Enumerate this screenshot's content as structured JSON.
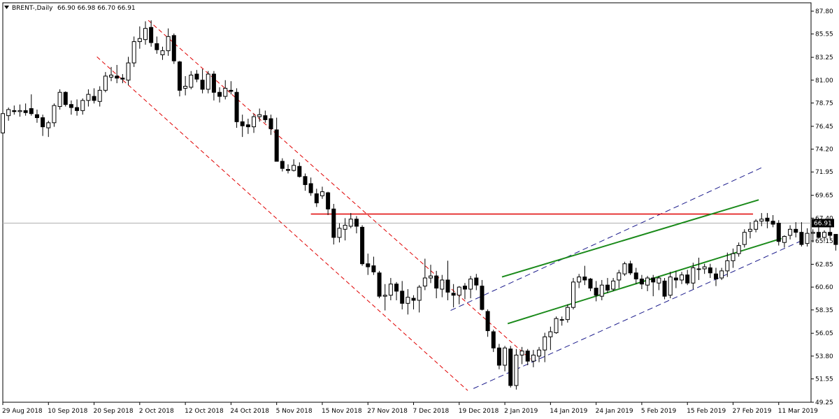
{
  "header": {
    "symbol": "BRENT-,Daily",
    "ohlc": "66.90 66.98 66.70 66.91"
  },
  "colors": {
    "background": "#ffffff",
    "candle_up_fill": "#ffffff",
    "candle_down_fill": "#000000",
    "candle_outline": "#000000",
    "resistance_line": "#e00000",
    "channel_up_green": "#1a8a1a",
    "channel_down_red_dashed": "#e00000",
    "channel_blue_dashed": "#1c1c8c",
    "current_price_line": "#b0b0b0",
    "price_label_bg": "#000000",
    "price_label_fg": "#ffffff"
  },
  "chart_data": {
    "type": "candlestick",
    "title": "BRENT-,Daily",
    "y_axis": {
      "ticks": [
        87.8,
        85.55,
        83.25,
        81.0,
        78.75,
        76.45,
        74.2,
        71.95,
        69.65,
        67.4,
        65.15,
        62.85,
        60.6,
        58.35,
        56.05,
        53.8,
        51.55,
        49.25
      ],
      "range": [
        49.25,
        87.8
      ]
    },
    "x_axis": {
      "labels": [
        "29 Aug 2018",
        "10 Sep 2018",
        "20 Sep 2018",
        "2 Oct 2018",
        "12 Oct 2018",
        "24 Oct 2018",
        "5 Nov 2018",
        "15 Nov 2018",
        "27 Nov 2018",
        "7 Dec 2018",
        "19 Dec 2018",
        "2 Jan 2019",
        "14 Jan 2019",
        "24 Jan 2019",
        "5 Feb 2019",
        "15 Feb 2019",
        "27 Feb 2019",
        "11 Mar 2019"
      ],
      "label_bar_index": [
        0,
        8,
        16,
        24,
        32,
        40,
        48,
        56,
        64,
        72,
        80,
        88,
        96,
        104,
        112,
        120,
        128,
        136
      ]
    },
    "current_price": 66.91,
    "current_price_label": "66.91",
    "candles": [
      [
        75.8,
        77.9,
        75.7,
        77.7
      ],
      [
        77.5,
        78.3,
        77.0,
        78.1
      ],
      [
        78.0,
        78.5,
        77.6,
        77.9
      ],
      [
        77.9,
        78.6,
        77.4,
        78.0
      ],
      [
        78.0,
        78.7,
        77.5,
        77.8
      ],
      [
        78.2,
        79.6,
        77.5,
        77.7
      ],
      [
        77.6,
        78.1,
        76.8,
        77.3
      ],
      [
        77.3,
        77.6,
        75.5,
        76.4
      ],
      [
        76.3,
        77.0,
        75.4,
        76.8
      ],
      [
        76.8,
        78.7,
        76.4,
        78.5
      ],
      [
        78.4,
        80.1,
        78.1,
        79.8
      ],
      [
        79.8,
        79.9,
        78.4,
        78.6
      ],
      [
        78.6,
        79.0,
        77.6,
        78.3
      ],
      [
        78.3,
        79.1,
        77.5,
        78.0
      ],
      [
        78.0,
        79.2,
        77.6,
        79.0
      ],
      [
        79.0,
        80.1,
        78.4,
        79.6
      ],
      [
        79.4,
        80.2,
        78.7,
        79.0
      ],
      [
        78.9,
        80.4,
        78.4,
        80.0
      ],
      [
        80.0,
        81.8,
        79.8,
        81.4
      ],
      [
        81.3,
        82.3,
        80.9,
        81.5
      ],
      [
        81.4,
        82.5,
        80.7,
        81.2
      ],
      [
        81.2,
        81.6,
        80.7,
        81.1
      ],
      [
        81.0,
        83.3,
        80.5,
        82.7
      ],
      [
        82.7,
        85.3,
        82.3,
        84.8
      ],
      [
        84.8,
        86.3,
        84.1,
        85.1
      ],
      [
        85.0,
        86.8,
        84.5,
        86.1
      ],
      [
        86.2,
        86.9,
        84.3,
        84.7
      ],
      [
        84.6,
        85.3,
        83.6,
        84.0
      ],
      [
        83.5,
        84.3,
        83.0,
        83.9
      ],
      [
        83.9,
        86.1,
        83.4,
        85.3
      ],
      [
        85.4,
        85.6,
        82.6,
        82.9
      ],
      [
        82.8,
        82.9,
        79.4,
        80.0
      ],
      [
        80.2,
        81.4,
        79.5,
        80.4
      ],
      [
        80.3,
        81.9,
        80.1,
        81.5
      ],
      [
        81.6,
        82.0,
        80.8,
        81.1
      ],
      [
        81.0,
        82.1,
        79.7,
        80.1
      ],
      [
        80.1,
        81.9,
        79.7,
        81.6
      ],
      [
        81.6,
        81.9,
        79.0,
        79.8
      ],
      [
        79.8,
        80.3,
        78.8,
        79.4
      ],
      [
        79.4,
        81.0,
        79.1,
        80.2
      ],
      [
        80.0,
        80.9,
        79.6,
        79.9
      ],
      [
        79.8,
        80.2,
        76.3,
        76.9
      ],
      [
        76.9,
        77.6,
        75.4,
        76.5
      ],
      [
        76.6,
        77.2,
        75.7,
        76.4
      ],
      [
        76.4,
        77.7,
        75.8,
        77.4
      ],
      [
        77.4,
        78.2,
        76.9,
        77.6
      ],
      [
        77.5,
        78.0,
        76.8,
        77.1
      ],
      [
        77.2,
        77.6,
        75.6,
        76.2
      ],
      [
        76.1,
        77.3,
        73.0,
        73.0
      ],
      [
        73.0,
        73.3,
        72.0,
        72.3
      ],
      [
        72.2,
        72.7,
        71.8,
        72.1
      ],
      [
        72.1,
        73.2,
        72.0,
        72.6
      ],
      [
        72.5,
        72.9,
        71.4,
        71.5
      ],
      [
        71.5,
        71.8,
        70.1,
        70.7
      ],
      [
        70.8,
        71.4,
        69.6,
        69.9
      ],
      [
        69.8,
        70.3,
        68.5,
        68.9
      ],
      [
        69.6,
        70.5,
        69.3,
        70.0
      ],
      [
        69.9,
        70.0,
        67.7,
        68.3
      ],
      [
        68.3,
        68.8,
        64.8,
        65.5
      ],
      [
        65.5,
        66.9,
        65.0,
        66.4
      ],
      [
        66.3,
        67.4,
        65.2,
        66.7
      ],
      [
        66.6,
        67.9,
        66.4,
        67.3
      ],
      [
        67.3,
        67.6,
        65.9,
        66.6
      ],
      [
        66.5,
        66.7,
        62.7,
        62.9
      ],
      [
        62.9,
        63.9,
        61.8,
        62.6
      ],
      [
        62.7,
        63.6,
        61.8,
        62.1
      ],
      [
        62.0,
        62.2,
        59.5,
        59.7
      ],
      [
        59.7,
        60.9,
        58.3,
        59.8
      ],
      [
        59.8,
        61.5,
        59.3,
        60.9
      ],
      [
        60.9,
        61.1,
        59.3,
        60.2
      ],
      [
        60.2,
        61.2,
        58.4,
        59.0
      ],
      [
        59.0,
        60.4,
        57.9,
        59.6
      ],
      [
        59.5,
        59.8,
        58.4,
        59.3
      ],
      [
        59.3,
        60.8,
        58.1,
        60.6
      ],
      [
        60.7,
        63.4,
        60.3,
        61.5
      ],
      [
        61.5,
        62.8,
        61.0,
        61.7
      ],
      [
        61.7,
        62.2,
        59.5,
        60.5
      ],
      [
        60.4,
        61.8,
        59.6,
        61.3
      ],
      [
        61.3,
        63.2,
        59.3,
        60.1
      ],
      [
        60.0,
        60.9,
        58.6,
        59.8
      ],
      [
        59.8,
        60.7,
        58.9,
        60.6
      ],
      [
        60.7,
        61.0,
        59.4,
        60.4
      ],
      [
        60.4,
        61.7,
        59.5,
        61.4
      ],
      [
        61.5,
        61.9,
        60.3,
        60.8
      ],
      [
        60.7,
        61.3,
        58.3,
        58.4
      ],
      [
        58.2,
        58.4,
        55.7,
        56.3
      ],
      [
        56.2,
        56.4,
        54.2,
        54.6
      ],
      [
        54.6,
        55.0,
        52.5,
        52.9
      ],
      [
        52.9,
        54.8,
        52.3,
        54.6
      ],
      [
        54.5,
        54.8,
        50.7,
        50.9
      ],
      [
        50.9,
        54.5,
        50.5,
        53.9
      ],
      [
        53.9,
        54.7,
        53.0,
        54.3
      ],
      [
        54.3,
        54.5,
        52.9,
        53.3
      ],
      [
        53.3,
        54.4,
        52.7,
        53.9
      ],
      [
        53.8,
        54.7,
        53.2,
        54.4
      ],
      [
        54.4,
        56.1,
        53.2,
        55.7
      ],
      [
        55.7,
        56.7,
        54.4,
        56.2
      ],
      [
        56.1,
        57.7,
        56.0,
        57.5
      ],
      [
        57.4,
        57.7,
        56.8,
        57.4
      ],
      [
        57.4,
        58.9,
        57.1,
        58.6
      ],
      [
        58.6,
        61.5,
        58.4,
        61.1
      ],
      [
        61.1,
        61.9,
        60.5,
        61.6
      ],
      [
        61.6,
        62.7,
        60.8,
        61.3
      ],
      [
        61.4,
        61.5,
        60.2,
        60.5
      ],
      [
        60.5,
        61.2,
        59.2,
        59.8
      ],
      [
        59.7,
        61.3,
        59.3,
        60.8
      ],
      [
        60.8,
        61.5,
        60.0,
        60.3
      ],
      [
        60.4,
        61.5,
        60.2,
        61.2
      ],
      [
        61.3,
        62.3,
        60.5,
        62.0
      ],
      [
        61.9,
        63.1,
        61.7,
        62.9
      ],
      [
        62.9,
        63.2,
        61.8,
        62.0
      ],
      [
        62.0,
        62.5,
        60.9,
        61.4
      ],
      [
        61.4,
        61.8,
        60.4,
        60.9
      ],
      [
        60.8,
        61.7,
        60.2,
        61.5
      ],
      [
        61.5,
        61.8,
        59.7,
        61.1
      ],
      [
        61.0,
        61.7,
        60.3,
        61.5
      ],
      [
        61.2,
        61.5,
        59.4,
        59.7
      ],
      [
        59.8,
        62.1,
        59.5,
        61.6
      ],
      [
        61.5,
        62.2,
        60.5,
        61.3
      ],
      [
        61.3,
        62.1,
        60.9,
        61.8
      ],
      [
        61.8,
        62.3,
        60.8,
        61.0
      ],
      [
        61.0,
        63.0,
        60.4,
        62.5
      ],
      [
        62.4,
        63.5,
        61.3,
        62.4
      ],
      [
        62.4,
        62.9,
        61.9,
        62.6
      ],
      [
        62.5,
        62.9,
        61.5,
        62.0
      ],
      [
        61.9,
        62.5,
        60.7,
        61.4
      ],
      [
        61.5,
        62.5,
        61.3,
        62.2
      ],
      [
        62.2,
        64.0,
        61.6,
        63.2
      ],
      [
        63.2,
        64.4,
        62.5,
        63.9
      ],
      [
        63.9,
        65.0,
        63.6,
        64.7
      ],
      [
        64.8,
        66.3,
        64.5,
        66.0
      ],
      [
        66.1,
        67.0,
        65.4,
        66.3
      ],
      [
        66.3,
        67.3,
        66.0,
        67.1
      ],
      [
        67.1,
        67.9,
        66.6,
        67.3
      ],
      [
        67.4,
        67.9,
        66.4,
        67.1
      ],
      [
        67.1,
        67.7,
        66.5,
        66.8
      ],
      [
        66.9,
        67.2,
        64.7,
        65.1
      ],
      [
        65.0,
        65.7,
        64.5,
        65.6
      ],
      [
        65.7,
        66.7,
        65.3,
        66.3
      ],
      [
        66.3,
        67.0,
        65.5,
        66.0
      ],
      [
        66.0,
        67.0,
        64.6,
        64.8
      ],
      [
        64.9,
        66.4,
        64.6,
        65.9
      ],
      [
        65.9,
        66.3,
        65.0,
        66.0
      ],
      [
        66.0,
        66.7,
        65.4,
        65.5
      ],
      [
        65.5,
        66.2,
        65.1,
        66.0
      ],
      [
        66.0,
        66.6,
        65.4,
        65.7
      ],
      [
        65.8,
        65.8,
        64.2,
        64.8
      ],
      [
        64.9,
        66.5,
        64.7,
        66.1
      ],
      [
        66.1,
        67.5,
        65.9,
        66.9
      ],
      [
        66.9,
        67.3,
        66.6,
        67.1
      ],
      [
        67.2,
        67.6,
        66.6,
        67.2
      ],
      [
        66.9,
        67.0,
        66.7,
        66.91
      ]
    ]
  }
}
